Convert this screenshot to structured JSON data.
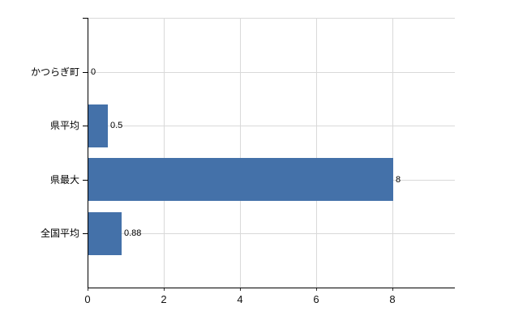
{
  "chart_data": {
    "type": "bar",
    "orientation": "horizontal",
    "title": "",
    "categories": [
      "かつらぎ町",
      "県平均",
      "県最大",
      "全国平均"
    ],
    "values": [
      0,
      0.5,
      8,
      0.88
    ],
    "value_labels": [
      "0",
      "0.5",
      "8",
      "0.88"
    ],
    "x_ticks": [
      0,
      2,
      4,
      6,
      8
    ],
    "x_tick_labels": [
      "0",
      "2",
      "4",
      "6",
      "8"
    ],
    "xlim": [
      0,
      9.62
    ],
    "ylabel": "",
    "xlabel": "",
    "grid": true,
    "legend": false,
    "colors": {
      "bar": "#4471a9",
      "gridline": "#d9d9d9",
      "axis": "#000000",
      "tick": "#333333",
      "text": "#000000",
      "background": "#ffffff"
    }
  }
}
